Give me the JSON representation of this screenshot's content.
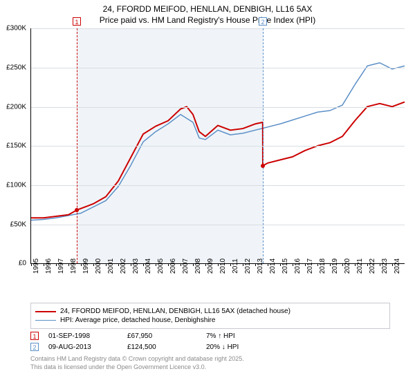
{
  "title_line1": "24, FFORDD MEIFOD, HENLLAN, DENBIGH, LL16 5AX",
  "title_line2": "Price paid vs. HM Land Registry's House Price Index (HPI)",
  "chart": {
    "type": "line",
    "background_color": "#ffffff",
    "plot_band_color": "#f0f4f8",
    "grid_color": "#d8dde2",
    "ylim": [
      0,
      300000
    ],
    "ytick_step": 50000,
    "yticks": [
      "£0",
      "£50K",
      "£100K",
      "£150K",
      "£200K",
      "£250K",
      "£300K"
    ],
    "x_years": [
      1995,
      1996,
      1997,
      1998,
      1999,
      2000,
      2001,
      2002,
      2003,
      2004,
      2005,
      2006,
      2007,
      2008,
      2009,
      2010,
      2011,
      2012,
      2013,
      2014,
      2015,
      2016,
      2017,
      2018,
      2019,
      2020,
      2021,
      2022,
      2023,
      2024
    ],
    "x_min": 1995,
    "x_max": 2025,
    "plot_band_start": 1998.67,
    "plot_band_end": 2013.61,
    "series": [
      {
        "name": "24, FFORDD MEIFOD, HENLLAN, DENBIGH, LL16 5AX (detached house)",
        "color": "#cc0000",
        "line_width": 2,
        "values": [
          [
            1995,
            58000
          ],
          [
            1996,
            58000
          ],
          [
            1997,
            60000
          ],
          [
            1998,
            62000
          ],
          [
            1998.67,
            67950
          ],
          [
            1999,
            70000
          ],
          [
            2000,
            76000
          ],
          [
            2001,
            85000
          ],
          [
            2002,
            105000
          ],
          [
            2003,
            135000
          ],
          [
            2004,
            165000
          ],
          [
            2005,
            175000
          ],
          [
            2006,
            182000
          ],
          [
            2007,
            197000
          ],
          [
            2007.5,
            200000
          ],
          [
            2008,
            190000
          ],
          [
            2008.5,
            168000
          ],
          [
            2009,
            162000
          ],
          [
            2010,
            176000
          ],
          [
            2011,
            170000
          ],
          [
            2012,
            172000
          ],
          [
            2013,
            178000
          ],
          [
            2013.6,
            180000
          ],
          [
            2013.61,
            124500
          ],
          [
            2014,
            128000
          ],
          [
            2015,
            132000
          ],
          [
            2016,
            136000
          ],
          [
            2017,
            144000
          ],
          [
            2018,
            150000
          ],
          [
            2019,
            154000
          ],
          [
            2020,
            162000
          ],
          [
            2021,
            182000
          ],
          [
            2022,
            200000
          ],
          [
            2023,
            204000
          ],
          [
            2024,
            200000
          ],
          [
            2025,
            206000
          ]
        ]
      },
      {
        "name": "HPI: Average price, detached house, Denbighshire",
        "color": "#5b8fc7",
        "line_width": 1.5,
        "values": [
          [
            1995,
            55000
          ],
          [
            1996,
            56000
          ],
          [
            1997,
            58000
          ],
          [
            1998,
            61000
          ],
          [
            1999,
            64000
          ],
          [
            2000,
            72000
          ],
          [
            2001,
            80000
          ],
          [
            2002,
            98000
          ],
          [
            2003,
            125000
          ],
          [
            2004,
            155000
          ],
          [
            2005,
            168000
          ],
          [
            2006,
            178000
          ],
          [
            2007,
            190000
          ],
          [
            2008,
            180000
          ],
          [
            2008.5,
            160000
          ],
          [
            2009,
            158000
          ],
          [
            2010,
            170000
          ],
          [
            2011,
            164000
          ],
          [
            2012,
            166000
          ],
          [
            2013,
            170000
          ],
          [
            2014,
            174000
          ],
          [
            2015,
            178000
          ],
          [
            2016,
            183000
          ],
          [
            2017,
            188000
          ],
          [
            2018,
            193000
          ],
          [
            2019,
            195000
          ],
          [
            2020,
            202000
          ],
          [
            2021,
            228000
          ],
          [
            2022,
            252000
          ],
          [
            2023,
            256000
          ],
          [
            2024,
            248000
          ],
          [
            2025,
            252000
          ]
        ]
      }
    ],
    "markers": [
      {
        "n": "1",
        "x": 1998.67,
        "color": "#cc0000",
        "dot_y": 67950
      },
      {
        "n": "2",
        "x": 2013.61,
        "color": "#5b8fc7",
        "dot_y": 124500
      }
    ]
  },
  "legend": {
    "items": [
      {
        "label": "24, FFORDD MEIFOD, HENLLAN, DENBIGH, LL16 5AX (detached house)",
        "color": "#cc0000",
        "width": 2
      },
      {
        "label": "HPI: Average price, detached house, Denbighshire",
        "color": "#5b8fc7",
        "width": 1.5
      }
    ]
  },
  "events": [
    {
      "n": "1",
      "color": "#cc0000",
      "date": "01-SEP-1998",
      "price": "£67,950",
      "delta": "7% ↑ HPI"
    },
    {
      "n": "2",
      "color": "#5b8fc7",
      "date": "09-AUG-2013",
      "price": "£124,500",
      "delta": "20% ↓ HPI"
    }
  ],
  "copyright_line1": "Contains HM Land Registry data © Crown copyright and database right 2025.",
  "copyright_line2": "This data is licensed under the Open Government Licence v3.0."
}
